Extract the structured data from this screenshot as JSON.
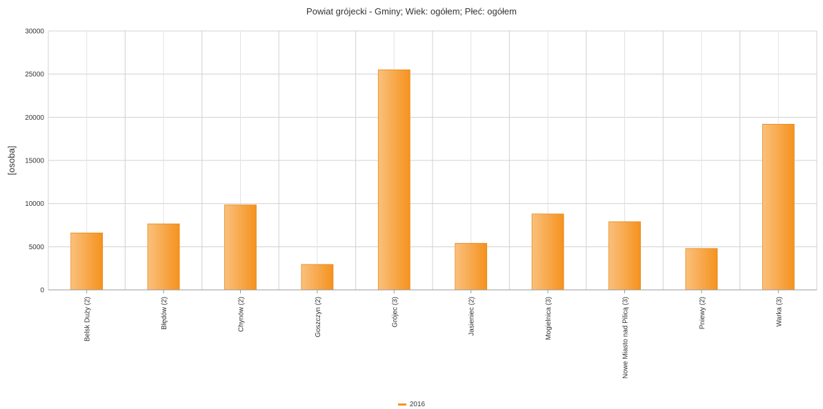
{
  "chart_data": {
    "type": "bar",
    "title": "Powiat grójecki - Gminy; Wiek: ogółem; Płeć: ogółem",
    "ylabel": "[osoba]",
    "xlabel": "",
    "ylim": [
      0,
      30000
    ],
    "yticks": [
      "0",
      "5000",
      "10000",
      "15000",
      "20000",
      "25000",
      "30000"
    ],
    "categories": [
      "Belsk Duży (2)",
      "Błędów (2)",
      "Chynów (2)",
      "Goszczyn (2)",
      "Grójec (3)",
      "Jasieniec (2)",
      "Mogielnica (3)",
      "Nowe Miasto nad Pilicą (3)",
      "Pniewy (2)",
      "Warka (3)"
    ],
    "series": [
      {
        "name": "2016",
        "values": [
          6600,
          7650,
          9850,
          2950,
          25500,
          5400,
          8800,
          7900,
          4800,
          19200
        ]
      }
    ],
    "grid": true,
    "legend_position": "bottom",
    "colors": {
      "bar": "#f5921e",
      "bar_light": "#fac07c",
      "grid": "#d0d0d0",
      "axis": "#999999"
    }
  }
}
